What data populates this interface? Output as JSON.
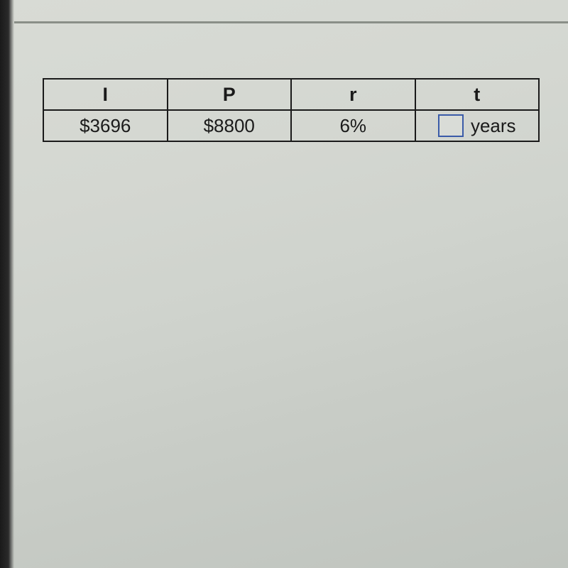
{
  "table": {
    "type": "table",
    "columns": [
      "I",
      "P",
      "r",
      "t"
    ],
    "rows": [
      {
        "I": "$3696",
        "P": "$8800",
        "r": "6%",
        "t_value": "",
        "t_unit": "years"
      }
    ],
    "border_color": "#1a1a1a",
    "input_border_color": "#3a5ba8",
    "header_fontsize": 27,
    "cell_fontsize": 26,
    "font_weight_header": "bold"
  },
  "background_color": "#d4d7d1"
}
